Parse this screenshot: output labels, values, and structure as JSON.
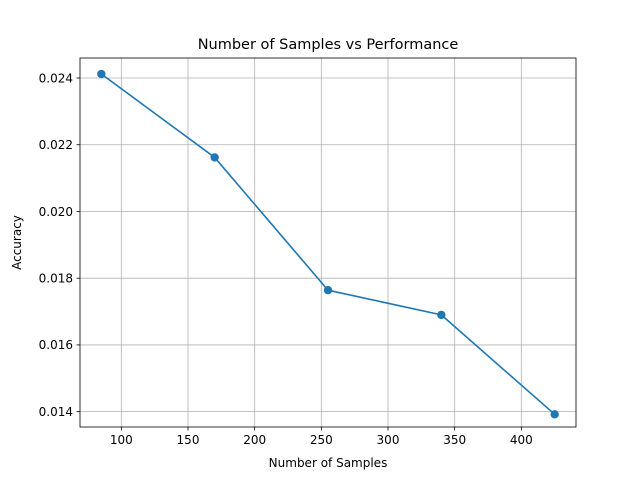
{
  "chart_data": {
    "type": "line",
    "title": "Number of Samples vs Performance",
    "xlabel": "Number of Samples",
    "ylabel": "Accuracy",
    "x": [
      85,
      170,
      255,
      340,
      425
    ],
    "series": [
      {
        "values": [
          0.02412,
          0.02162,
          0.01764,
          0.0169,
          0.01392
        ],
        "color": "#1f77b4",
        "marker": "circle"
      }
    ],
    "xlim": [
      69,
      441
    ],
    "ylim": [
      0.01354,
      0.0246
    ],
    "xticks": [
      100,
      150,
      200,
      250,
      300,
      350,
      400
    ],
    "xtick_labels": [
      "100",
      "150",
      "200",
      "250",
      "300",
      "350",
      "400"
    ],
    "yticks": [
      0.014,
      0.016,
      0.018,
      0.02,
      0.022,
      0.024
    ],
    "ytick_labels": [
      "0.014",
      "0.016",
      "0.018",
      "0.020",
      "0.022",
      "0.024"
    ],
    "grid": true,
    "grid_color": "#b0b0b0",
    "axes_color": "#000000"
  }
}
